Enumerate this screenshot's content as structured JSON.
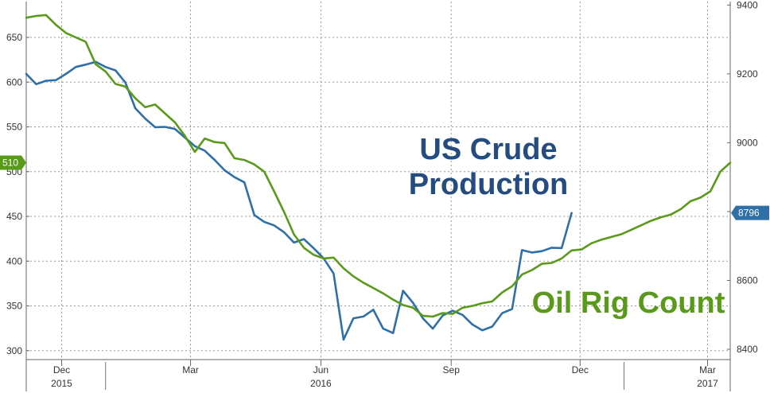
{
  "chart_data": {
    "type": "line",
    "title": "",
    "xlabel": "",
    "x_tick_labels": [
      {
        "label": "Dec",
        "year": "2015",
        "date": "2015-12-01"
      },
      {
        "label": "Mar",
        "year": "",
        "date": "2016-03-01"
      },
      {
        "label": "Jun",
        "year": "2016",
        "date": "2016-06-01"
      },
      {
        "label": "Sep",
        "year": "",
        "date": "2016-09-01"
      },
      {
        "label": "Dec",
        "year": "",
        "date": "2016-12-01"
      },
      {
        "label": "Mar",
        "year": "2017",
        "date": "2017-03-01"
      }
    ],
    "xlim": [
      "2015-11-06",
      "2017-03-17"
    ],
    "y_left": {
      "label": "",
      "ylim": [
        290,
        690
      ],
      "ticks": [
        300,
        350,
        400,
        450,
        500,
        550,
        600,
        650
      ]
    },
    "y_right": {
      "label": "",
      "ylim": [
        8370,
        9410
      ],
      "ticks": [
        8400,
        8600,
        8800,
        9000,
        9200,
        9400
      ]
    },
    "grid": true,
    "series": [
      {
        "name": "US Crude Production",
        "axis": "right",
        "color": "#2e6fa8",
        "last_value": "8796",
        "x": [
          "2015-11-06",
          "2015-11-13",
          "2015-11-20",
          "2015-11-27",
          "2015-12-04",
          "2015-12-11",
          "2015-12-18",
          "2015-12-25",
          "2016-01-01",
          "2016-01-08",
          "2016-01-15",
          "2016-01-22",
          "2016-01-29",
          "2016-02-05",
          "2016-02-12",
          "2016-02-19",
          "2016-02-26",
          "2016-03-04",
          "2016-03-11",
          "2016-03-18",
          "2016-03-25",
          "2016-04-01",
          "2016-04-08",
          "2016-04-15",
          "2016-04-22",
          "2016-04-29",
          "2016-05-06",
          "2016-05-13",
          "2016-05-20",
          "2016-05-27",
          "2016-06-03",
          "2016-06-10",
          "2016-06-17",
          "2016-06-24",
          "2016-07-01",
          "2016-07-08",
          "2016-07-15",
          "2016-07-22",
          "2016-07-29",
          "2016-08-05",
          "2016-08-12",
          "2016-08-19",
          "2016-08-26",
          "2016-09-02",
          "2016-09-09",
          "2016-09-16",
          "2016-09-23",
          "2016-09-30",
          "2016-10-07",
          "2016-10-14",
          "2016-10-21",
          "2016-10-28",
          "2016-11-04",
          "2016-11-11",
          "2016-11-18",
          "2016-11-25",
          "2016-12-02"
        ],
        "values": [
          9200,
          9170,
          9180,
          9182,
          9200,
          9220,
          9227,
          9235,
          9220,
          9210,
          9175,
          9100,
          9070,
          9045,
          9046,
          9040,
          9015,
          8990,
          8977,
          8950,
          8920,
          8900,
          8885,
          8790,
          8770,
          8760,
          8740,
          8710,
          8720,
          8693,
          8664,
          8620,
          8428,
          8490,
          8495,
          8515,
          8460,
          8447,
          8570,
          8535,
          8490,
          8460,
          8498,
          8512,
          8500,
          8472,
          8455,
          8466,
          8505,
          8517,
          8688,
          8681,
          8685,
          8695,
          8694,
          8796,
          null
        ]
      },
      {
        "name": "Oil Rig Count",
        "axis": "left",
        "color": "#5a9a1a",
        "last_value": "510",
        "x": [
          "2015-11-06",
          "2015-11-13",
          "2015-11-20",
          "2015-11-27",
          "2015-12-04",
          "2015-12-11",
          "2015-12-18",
          "2015-12-25",
          "2016-01-01",
          "2016-01-08",
          "2016-01-15",
          "2016-01-22",
          "2016-01-29",
          "2016-02-05",
          "2016-02-12",
          "2016-02-19",
          "2016-02-26",
          "2016-03-04",
          "2016-03-11",
          "2016-03-18",
          "2016-03-25",
          "2016-04-01",
          "2016-04-08",
          "2016-04-15",
          "2016-04-22",
          "2016-04-29",
          "2016-05-06",
          "2016-05-13",
          "2016-05-20",
          "2016-05-27",
          "2016-06-03",
          "2016-06-10",
          "2016-06-17",
          "2016-06-24",
          "2016-07-01",
          "2016-07-08",
          "2016-07-15",
          "2016-07-22",
          "2016-07-29",
          "2016-08-05",
          "2016-08-12",
          "2016-08-19",
          "2016-08-26",
          "2016-09-02",
          "2016-09-09",
          "2016-09-16",
          "2016-09-23",
          "2016-09-30",
          "2016-10-07",
          "2016-10-14",
          "2016-10-21",
          "2016-10-28",
          "2016-11-04",
          "2016-11-11",
          "2016-11-18",
          "2016-11-25",
          "2016-12-02",
          "2016-12-09",
          "2016-12-16",
          "2016-12-23",
          "2016-12-30",
          "2017-01-06",
          "2017-01-13",
          "2017-01-20",
          "2017-01-27",
          "2017-02-03",
          "2017-02-10",
          "2017-02-17",
          "2017-02-24",
          "2017-03-03",
          "2017-03-10",
          "2017-03-17"
        ],
        "values": [
          672,
          674,
          675,
          664,
          655,
          650,
          645,
          620,
          612,
          598,
          595,
          582,
          572,
          575,
          565,
          555,
          540,
          522,
          537,
          533,
          532,
          515,
          513,
          508,
          500,
          478,
          455,
          430,
          415,
          407,
          403,
          404,
          392,
          383,
          376,
          370,
          364,
          357,
          351,
          348,
          339,
          338,
          342,
          341,
          348,
          350,
          353,
          355,
          365,
          372,
          385,
          390,
          397,
          398,
          403,
          412,
          413,
          420,
          424,
          427,
          430,
          435,
          440,
          445,
          449,
          452,
          458,
          467,
          471,
          478,
          500,
          510
        ]
      }
    ]
  },
  "annotations": {
    "crude_line1": "US Crude",
    "crude_line2": "Production",
    "rig_label": "Oil Rig Count"
  },
  "colors": {
    "crude": "#2e6fa8",
    "rig": "#5a9a1a",
    "crude_text": "#244c7e",
    "rig_text": "#5a9a1a"
  }
}
